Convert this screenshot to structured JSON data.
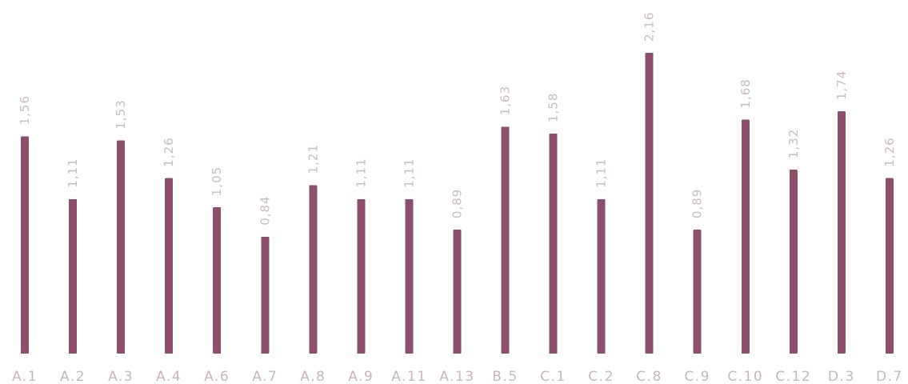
{
  "chart_data": {
    "type": "bar",
    "title": "",
    "xlabel": "",
    "ylabel": "",
    "categories": [
      "A.1",
      "A.2",
      "A.3",
      "A.4",
      "A.6",
      "A.7",
      "A.8",
      "A.9",
      "A.11",
      "A.13",
      "B.5",
      "C.1",
      "C.2",
      "C.8",
      "C.9",
      "C.10",
      "C.12",
      "D.3",
      "D.7"
    ],
    "values": [
      1.56,
      1.11,
      1.53,
      1.26,
      1.05,
      0.84,
      1.21,
      1.11,
      1.11,
      0.89,
      1.63,
      1.58,
      1.11,
      2.16,
      0.89,
      1.68,
      1.32,
      1.74,
      1.26
    ],
    "value_labels": [
      "1,56",
      "1,11",
      "1,53",
      "1,26",
      "1,05",
      "0,84",
      "1,21",
      "1,11",
      "1,11",
      "0,89",
      "1,63",
      "1,58",
      "1,11",
      "2,16",
      "0,89",
      "1,68",
      "1,32",
      "1,74",
      "1,26"
    ],
    "ylim": [
      0,
      2.16
    ],
    "grid": false,
    "legend": "none",
    "bar_color": "#8e4f6c",
    "value_label_color": "#c9bcc5",
    "tick_label_color": "#c7b6c2"
  }
}
